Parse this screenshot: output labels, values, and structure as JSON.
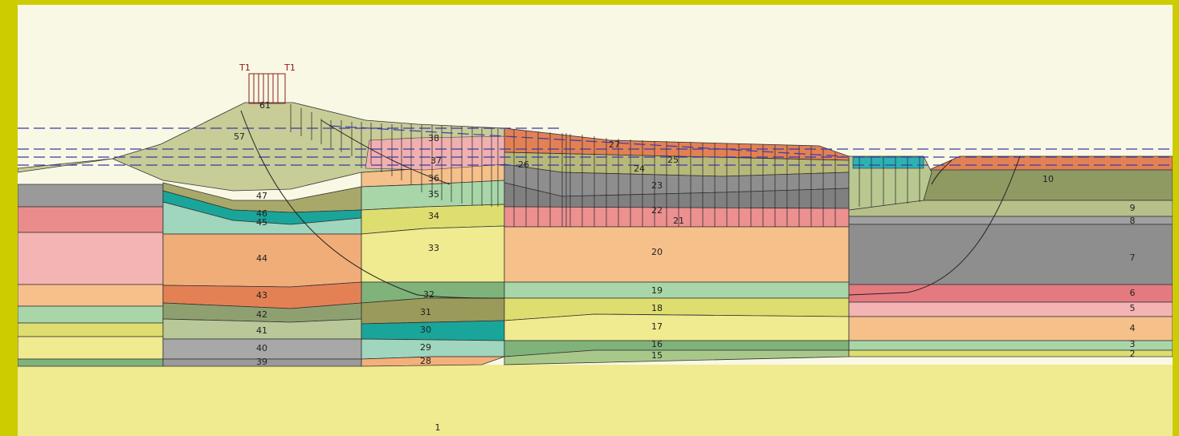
{
  "load_labels": [
    "T1",
    "T1"
  ],
  "layer_labels": {
    "l1": "1",
    "l2": "2",
    "l3": "3",
    "l4": "4",
    "l5": "5",
    "l6": "6",
    "l7": "7",
    "l8": "8",
    "l9": "9",
    "l10": "10",
    "l15": "15",
    "l16": "16",
    "l17": "17",
    "l18": "18",
    "l19": "19",
    "l20": "20",
    "l21": "21",
    "l22": "22",
    "l23": "23",
    "l24": "24",
    "l25": "25",
    "l26": "26",
    "l27": "27",
    "l28": "28",
    "l29": "29",
    "l30": "30",
    "l31": "31",
    "l32": "32",
    "l33": "33",
    "l34": "34",
    "l35": "35",
    "l36": "36",
    "l37": "37",
    "l38": "38",
    "l39": "39",
    "l40": "40",
    "l41": "41",
    "l42": "42",
    "l43": "43",
    "l44": "44",
    "l45": "45",
    "l46": "46",
    "l47": "47",
    "l57": "57",
    "l61": "61"
  },
  "colors": {
    "frame": "#cccc00",
    "sky": "#f8f8e4",
    "water_line": "#3a3aa8",
    "base": "#f0ea90",
    "pink": "#f2b3b3",
    "salmon": "#f6c08a",
    "gray": "#8e8e8e",
    "green": "#8fbf7f",
    "teal": "#1aa59a",
    "orange": "#e38155"
  }
}
